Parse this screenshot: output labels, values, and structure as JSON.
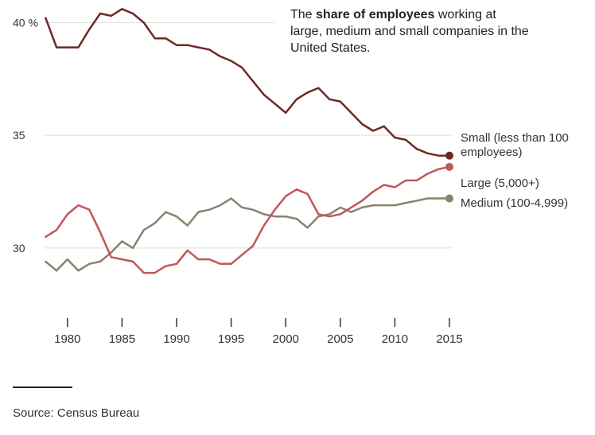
{
  "title": {
    "prefix": "The ",
    "bold": "share of employees",
    "suffix": " working at large, medium and small companies in the United States."
  },
  "source": "Source: Census Bureau",
  "colors": {
    "small": "#6e2a24",
    "large": "#c0575a",
    "medium": "#8a8270",
    "grid": "#dddddd",
    "axis": "#333333"
  },
  "chart_data": {
    "type": "line",
    "title": "The share of employees working at large, medium and small companies in the United States.",
    "xlabel": "",
    "ylabel": "",
    "xlim": [
      1977.9,
      2015
    ],
    "ylim": [
      27,
      41
    ],
    "y_ticks": [
      {
        "value": 40,
        "label": "40 %"
      },
      {
        "value": 35,
        "label": "35"
      },
      {
        "value": 30,
        "label": "30"
      }
    ],
    "x_ticks": [
      1980,
      1985,
      1990,
      1995,
      2000,
      2005,
      2010,
      2015
    ],
    "x": [
      1978,
      1979,
      1980,
      1981,
      1982,
      1983,
      1984,
      1985,
      1986,
      1987,
      1988,
      1989,
      1990,
      1991,
      1992,
      1993,
      1994,
      1995,
      1996,
      1997,
      1998,
      1999,
      2000,
      2001,
      2002,
      2003,
      2004,
      2005,
      2006,
      2007,
      2008,
      2009,
      2010,
      2011,
      2012,
      2013,
      2014,
      2015
    ],
    "series": [
      {
        "key": "small",
        "name": "Small (less than 100 employees)",
        "label_lines": [
          "Small (less than 100",
          "employees)"
        ],
        "values": [
          40.2,
          38.9,
          38.9,
          38.9,
          39.7,
          40.4,
          40.3,
          40.6,
          40.4,
          40.0,
          39.3,
          39.3,
          39.0,
          39.0,
          38.9,
          38.8,
          38.5,
          38.3,
          38.0,
          37.4,
          36.8,
          36.4,
          36.0,
          36.6,
          36.9,
          37.1,
          36.6,
          36.5,
          36.0,
          35.5,
          35.2,
          35.4,
          34.9,
          34.8,
          34.4,
          34.2,
          34.1,
          34.1
        ]
      },
      {
        "key": "large",
        "name": "Large (5,000+)",
        "label_lines": [
          "Large (5,000+)"
        ],
        "values": [
          30.5,
          30.8,
          31.5,
          31.9,
          31.7,
          30.7,
          29.6,
          29.5,
          29.4,
          28.9,
          28.9,
          29.2,
          29.3,
          29.9,
          29.5,
          29.5,
          29.3,
          29.3,
          29.7,
          30.1,
          31.0,
          31.7,
          32.3,
          32.6,
          32.4,
          31.5,
          31.4,
          31.5,
          31.8,
          32.1,
          32.5,
          32.8,
          32.7,
          33.0,
          33.0,
          33.3,
          33.5,
          33.6
        ]
      },
      {
        "key": "medium",
        "name": "Medium (100-4,999)",
        "label_lines": [
          "Medium (100-4,999)"
        ],
        "values": [
          29.4,
          29.0,
          29.5,
          29.0,
          29.3,
          29.4,
          29.8,
          30.3,
          30.0,
          30.8,
          31.1,
          31.6,
          31.4,
          31.0,
          31.6,
          31.7,
          31.9,
          32.2,
          31.8,
          31.7,
          31.5,
          31.4,
          31.4,
          31.3,
          30.9,
          31.4,
          31.5,
          31.8,
          31.6,
          31.8,
          31.9,
          31.9,
          31.9,
          32.0,
          32.1,
          32.2,
          32.2,
          32.2
        ]
      }
    ]
  }
}
